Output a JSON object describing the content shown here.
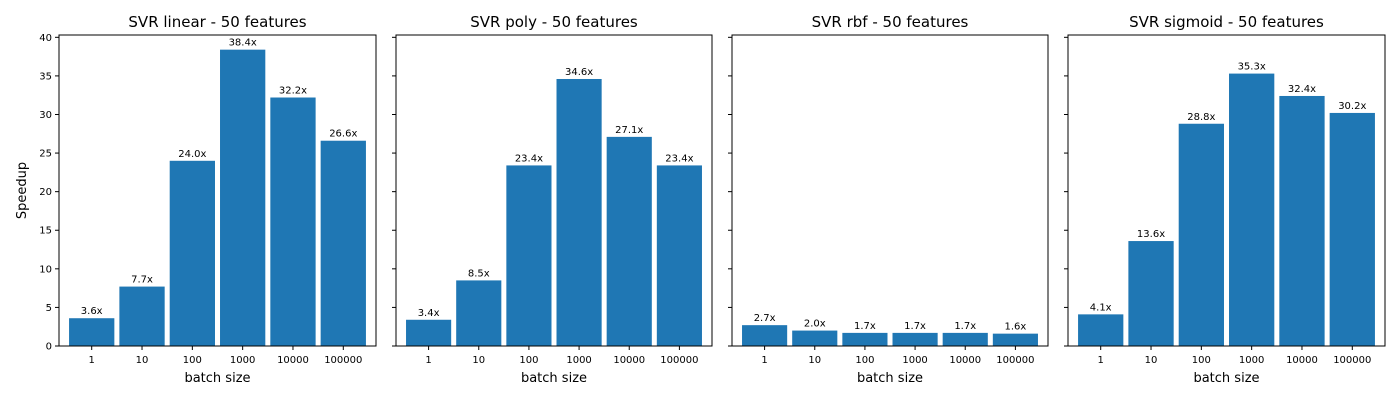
{
  "chart_data": [
    {
      "type": "bar",
      "title": "SVR linear - 50 features",
      "xlabel": "batch size",
      "ylabel": "Speedup",
      "categories": [
        "1",
        "10",
        "100",
        "1000",
        "10000",
        "100000"
      ],
      "values": [
        3.6,
        7.7,
        24.0,
        38.4,
        32.2,
        26.6
      ],
      "data_labels": [
        "3.6x",
        "7.7x",
        "24.0x",
        "38.4x",
        "32.2x",
        "26.6x"
      ],
      "ylim": [
        0,
        40.3
      ],
      "yticks": [
        0,
        5,
        10,
        15,
        20,
        25,
        30,
        35,
        40
      ],
      "ytick_labels_shown": true,
      "color": "#1f77b4",
      "grid": false
    },
    {
      "type": "bar",
      "title": "SVR poly - 50 features",
      "xlabel": "batch size",
      "ylabel": "",
      "categories": [
        "1",
        "10",
        "100",
        "1000",
        "10000",
        "100000"
      ],
      "values": [
        3.4,
        8.5,
        23.4,
        34.6,
        27.1,
        23.4
      ],
      "data_labels": [
        "3.4x",
        "8.5x",
        "23.4x",
        "34.6x",
        "27.1x",
        "23.4x"
      ],
      "ylim": [
        0,
        40.3
      ],
      "yticks": [
        0,
        5,
        10,
        15,
        20,
        25,
        30,
        35,
        40
      ],
      "ytick_labels_shown": false,
      "color": "#1f77b4",
      "grid": false
    },
    {
      "type": "bar",
      "title": "SVR rbf - 50 features",
      "xlabel": "batch size",
      "ylabel": "",
      "categories": [
        "1",
        "10",
        "100",
        "1000",
        "10000",
        "100000"
      ],
      "values": [
        2.7,
        2.0,
        1.7,
        1.7,
        1.7,
        1.6
      ],
      "data_labels": [
        "2.7x",
        "2.0x",
        "1.7x",
        "1.7x",
        "1.7x",
        "1.6x"
      ],
      "ylim": [
        0,
        40.3
      ],
      "yticks": [
        0,
        5,
        10,
        15,
        20,
        25,
        30,
        35,
        40
      ],
      "ytick_labels_shown": false,
      "color": "#1f77b4",
      "grid": false
    },
    {
      "type": "bar",
      "title": "SVR sigmoid - 50 features",
      "xlabel": "batch size",
      "ylabel": "",
      "categories": [
        "1",
        "10",
        "100",
        "1000",
        "10000",
        "100000"
      ],
      "values": [
        4.1,
        13.6,
        28.8,
        35.3,
        32.4,
        30.2
      ],
      "data_labels": [
        "4.1x",
        "13.6x",
        "28.8x",
        "35.3x",
        "32.4x",
        "30.2x"
      ],
      "ylim": [
        0,
        40.3
      ],
      "yticks": [
        0,
        5,
        10,
        15,
        20,
        25,
        30,
        35,
        40
      ],
      "ytick_labels_shown": false,
      "color": "#1f77b4",
      "grid": false
    }
  ]
}
